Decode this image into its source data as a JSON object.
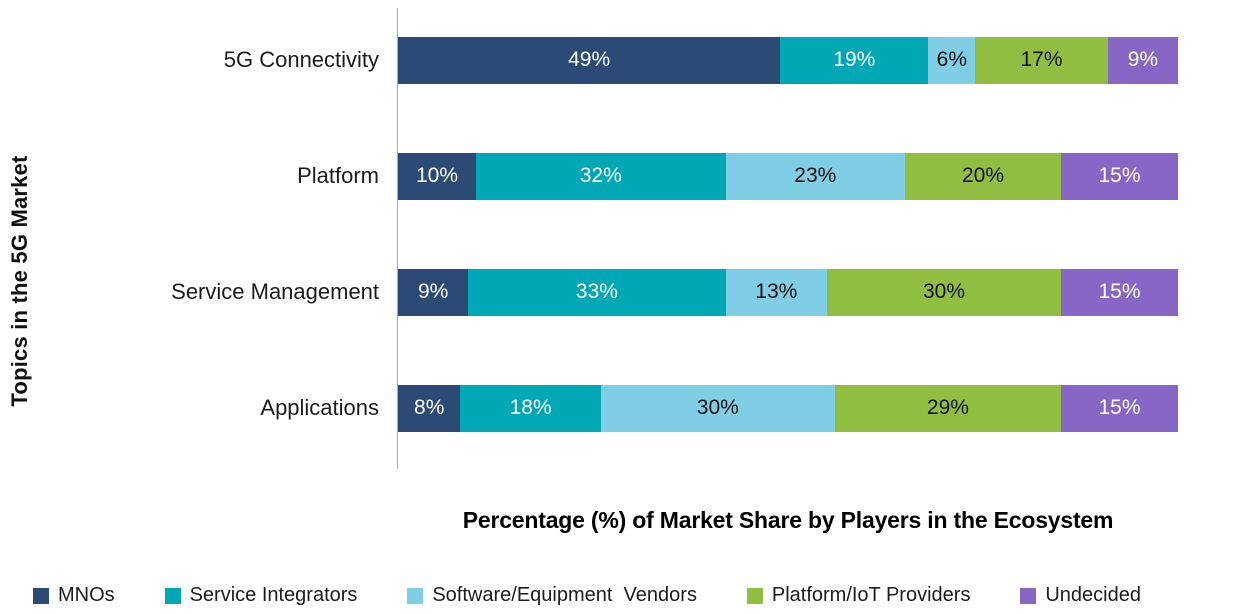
{
  "chart_data": {
    "type": "bar",
    "orientation": "horizontal-stacked",
    "title": "",
    "xlabel": "Percentage (%) of Market Share by Players in the Ecosystem",
    "ylabel": "Topics in the 5G Market",
    "xlim": [
      0,
      100
    ],
    "value_suffix": "%",
    "grid": false,
    "legend_position": "bottom",
    "axis_line_color": "#ABABAB",
    "background_color": "#FFFFFF",
    "categories": [
      "5G Connectivity",
      "Platform",
      "Service Management",
      "Applications"
    ],
    "series": [
      {
        "name": "MNOs",
        "color": "#2B4A76",
        "label_color": "#FFFFFF",
        "values": [
          49,
          10,
          9,
          8
        ]
      },
      {
        "name": "Service Integrators",
        "color": "#00A7B5",
        "label_color": "#FFFFFF",
        "values": [
          19,
          32,
          33,
          18
        ]
      },
      {
        "name": "Software/Equipment  Vendors",
        "color": "#80CDE6",
        "label_color": "#111111",
        "values": [
          6,
          23,
          13,
          30
        ]
      },
      {
        "name": "Platform/IoT Providers",
        "color": "#91BE41",
        "label_color": "#111111",
        "values": [
          17,
          20,
          30,
          29
        ]
      },
      {
        "name": "Undecided",
        "color": "#8766C6",
        "label_color": "#FFFFFF",
        "values": [
          9,
          15,
          15,
          15
        ]
      }
    ]
  }
}
